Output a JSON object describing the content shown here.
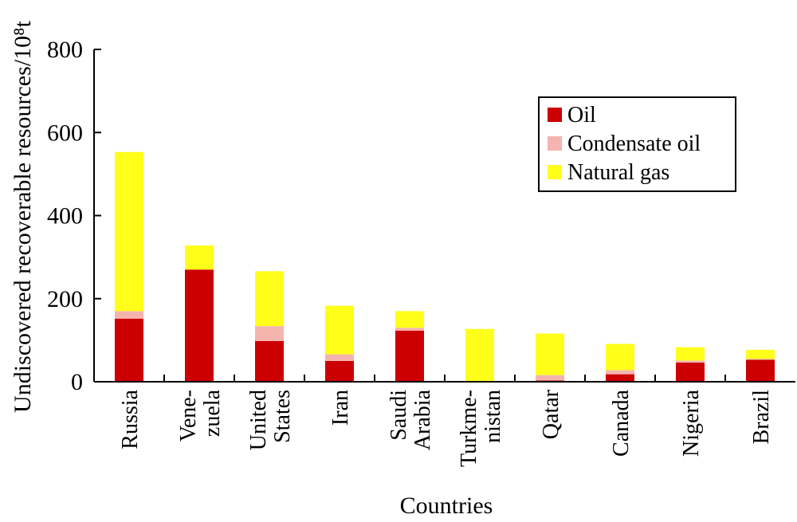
{
  "chart_data": {
    "type": "bar",
    "stacked": true,
    "categories": [
      "Russia",
      "Vene- zuela",
      "United States",
      "Iran",
      "Saudi Arabia",
      "Turkme- nistan",
      "Qatar",
      "Canada",
      "Nigeria",
      "Brazil"
    ],
    "category_lines": [
      [
        "Russia"
      ],
      [
        "Vene-",
        "zuela"
      ],
      [
        "United",
        "States"
      ],
      [
        "Iran"
      ],
      [
        "Saudi",
        "Arabia"
      ],
      [
        "Turkme-",
        "nistan"
      ],
      [
        "Qatar"
      ],
      [
        "Canada"
      ],
      [
        "Nigeria"
      ],
      [
        "Brazil"
      ]
    ],
    "series": [
      {
        "name": "Oil",
        "color": "#cc0000",
        "values": [
          152,
          270,
          98,
          50,
          123,
          0,
          3,
          18,
          46,
          53
        ]
      },
      {
        "name": "Condensate oil",
        "color": "#f5b5ae",
        "values": [
          18,
          0,
          36,
          16,
          7,
          0,
          13,
          10,
          5,
          2
        ]
      },
      {
        "name": "Natural gas",
        "color": "#ffff1a",
        "values": [
          383,
          58,
          132,
          117,
          40,
          127,
          100,
          63,
          32,
          22
        ]
      }
    ],
    "xlabel": "Countries",
    "ylabel": "Undiscovered recoverable resources/10⁸t",
    "ylim": [
      0,
      800
    ],
    "yticks": [
      0,
      200,
      400,
      600,
      800
    ],
    "legend_position": "top-right",
    "grid": false
  }
}
